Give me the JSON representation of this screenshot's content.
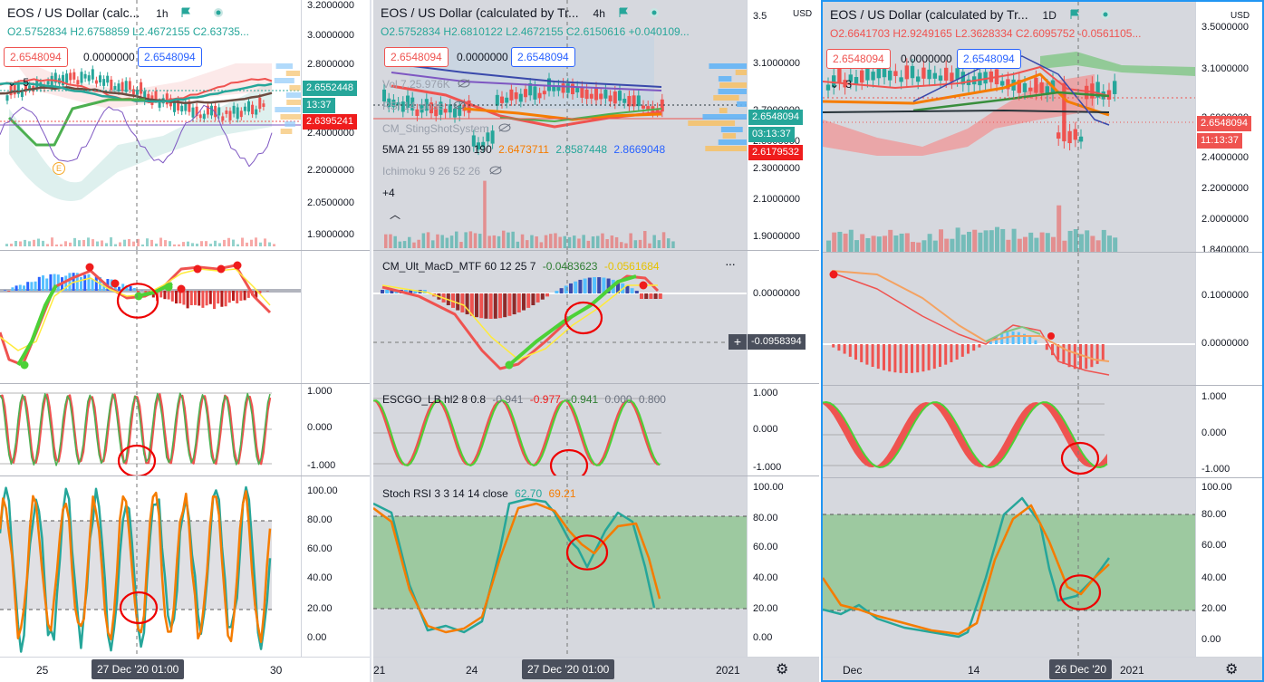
{
  "panels": [
    {
      "id": "p1h",
      "title": "EOS / US Dollar (calc...",
      "interval": "1h",
      "ohlc": {
        "o": "O2.5752834",
        "h": "H2.6758859",
        "l": "L2.4672155",
        "c": "C2.63735..."
      },
      "price_boxes": {
        "sell": "2.6548094",
        "zero": "0.0000000",
        "buy": "2.6548094"
      },
      "collapse_count": "5",
      "axis_ticks": [
        "3.2000000",
        "3.0000000",
        "2.8000000",
        "2.6000000",
        "2.4000000",
        "2.2000000",
        "2.0500000",
        "1.9000000"
      ],
      "price_tags": [
        {
          "text": "2.6552448",
          "color": "#26a69a"
        },
        {
          "text": "13:37",
          "color": "#26a69a"
        },
        {
          "text": "2.6395241",
          "color": "#ef1c1c"
        }
      ],
      "event_badge": "E",
      "osc_ticks": [
        "1.000",
        "0.000",
        "-1.000"
      ],
      "rsi_ticks": [
        "100.00",
        "80.00",
        "60.00",
        "40.00",
        "20.00",
        "0.00"
      ],
      "time_labels": [
        "25",
        "30"
      ],
      "crosshair_time": "27 Dec '20   01:00"
    },
    {
      "id": "p4h",
      "title": "EOS / US Dollar (calculated by Tr...",
      "interval": "4h",
      "ohlc": {
        "o": "O2.5752834",
        "h": "H2.6810122",
        "l": "L2.4672155",
        "c": "C2.6150616",
        "chg": "+0.040109..."
      },
      "price_boxes": {
        "sell": "2.6548094",
        "zero": "0.0000000",
        "buy": "2.6548094"
      },
      "indicators": [
        {
          "name": "Vol",
          "value": "7.25.976K",
          "hidden": true
        },
        {
          "name": "RSI 14 close",
          "value": "",
          "hidden": true
        },
        {
          "name": "CM_StingShotSystem",
          "value": "",
          "hidden": true
        },
        {
          "name": "5MA 21 55 89 130 190",
          "values": [
            "2.6473711",
            "2.8587448",
            "2.8669048"
          ]
        },
        {
          "name": "Ichimoku 9 26 52 26",
          "value": "",
          "hidden": true
        }
      ],
      "more_count": "+4",
      "currency": "USD",
      "axis_ticks": [
        "3.5",
        "3.1000000",
        "2.7000000",
        "2.5000000",
        "2.3000000",
        "2.1000000",
        "1.9000000"
      ],
      "price_tags": [
        {
          "text": "2.6548094",
          "color": "#26a69a"
        },
        {
          "text": "03:13:37",
          "color": "#26a69a"
        },
        {
          "text": "2.6179532",
          "color": "#ef1c1c"
        }
      ],
      "macd_title": "CM_Ult_MacD_MTF 60 12 25 7",
      "macd_values": [
        "-0.0483623",
        "-0.0561684"
      ],
      "macd_ticks": [
        "0.0000000"
      ],
      "macd_cross_value": "-0.0958394",
      "escgo_title": "ESCGO_LB hl2 8 0.8",
      "escgo_values": [
        "-0.941",
        "-0.977",
        "-0.941",
        "0.000",
        "0.800"
      ],
      "osc_ticks": [
        "1.000",
        "0.000",
        "-1.000"
      ],
      "stoch_title": "Stoch RSI 3 3 14 14 close",
      "stoch_values": [
        "62.70",
        "69.21"
      ],
      "rsi_ticks": [
        "100.00",
        "80.00",
        "60.00",
        "40.00",
        "20.00",
        "0.00"
      ],
      "time_labels": [
        "21",
        "24",
        "2021"
      ],
      "crosshair_time": "27 Dec '20   01:00"
    },
    {
      "id": "p1d",
      "title": "EOS / US Dollar (calculated by Tr...",
      "interval": "1D",
      "ohlc": {
        "o": "O2.6641703",
        "h": "H2.9249165",
        "l": "L2.3628334",
        "c": "C2.6095752",
        "chg": "-0.0561105..."
      },
      "price_boxes": {
        "sell": "2.6548094",
        "zero": "0.0000000",
        "buy": "2.6548094"
      },
      "collapse_count": "3",
      "currency": "USD",
      "axis_ticks": [
        "3.5000000",
        "3.1000000",
        "2.6000000",
        "2.4000000",
        "2.2000000",
        "2.0000000",
        "1.8400000"
      ],
      "price_tags": [
        {
          "text": "2.6548094",
          "color": "#ef5350"
        },
        {
          "text": "11:13:37",
          "color": "#ef5350"
        }
      ],
      "macd_ticks": [
        "0.1000000",
        "0.0000000"
      ],
      "osc_ticks": [
        "1.000",
        "0.000",
        "-1.000"
      ],
      "rsi_ticks": [
        "100.00",
        "80.00",
        "60.00",
        "40.00",
        "20.00",
        "0.00"
      ],
      "time_labels": [
        "Dec",
        "14",
        "2021"
      ],
      "crosshair_time": "26 Dec '20"
    }
  ],
  "colors": {
    "up": "#26a69a",
    "down": "#ef5350",
    "accent": "#2962ff",
    "rsi_fill": "#9dc9a0"
  },
  "icons": [
    "flag-icon",
    "live-dot-icon",
    "eye-off-icon",
    "chevron-up-icon",
    "more-icon",
    "plus-icon",
    "settings-gear-icon"
  ]
}
